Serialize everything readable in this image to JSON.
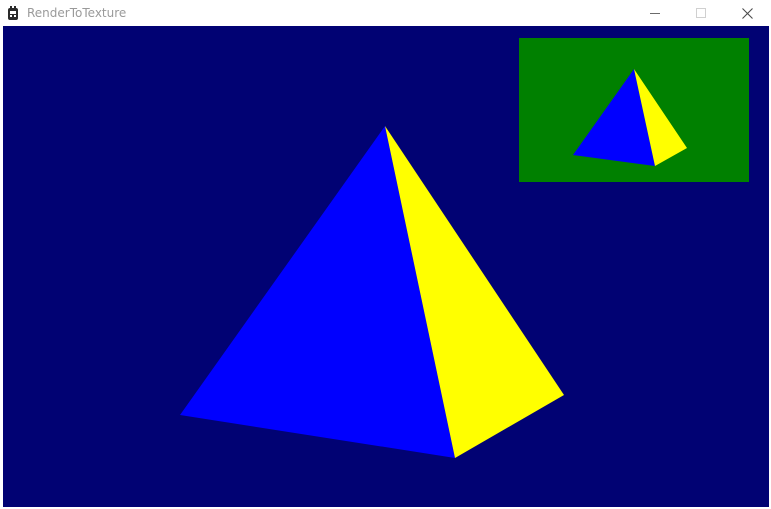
{
  "window": {
    "title": "RenderToTexture",
    "controls": {
      "minimize": "minimize",
      "maximize": "maximize",
      "close": "close"
    }
  },
  "scene": {
    "background_color": "#010273",
    "main_pyramid": {
      "left_face_color": "#0000ff",
      "right_face_color": "#ffff00"
    },
    "render_texture_inset": {
      "background_color": "#008000",
      "left_face_color": "#0000ff",
      "right_face_color": "#ffff00"
    }
  },
  "icons": {
    "app": "app-icon",
    "minimize": "minimize-icon",
    "maximize": "maximize-icon",
    "close": "close-icon"
  }
}
